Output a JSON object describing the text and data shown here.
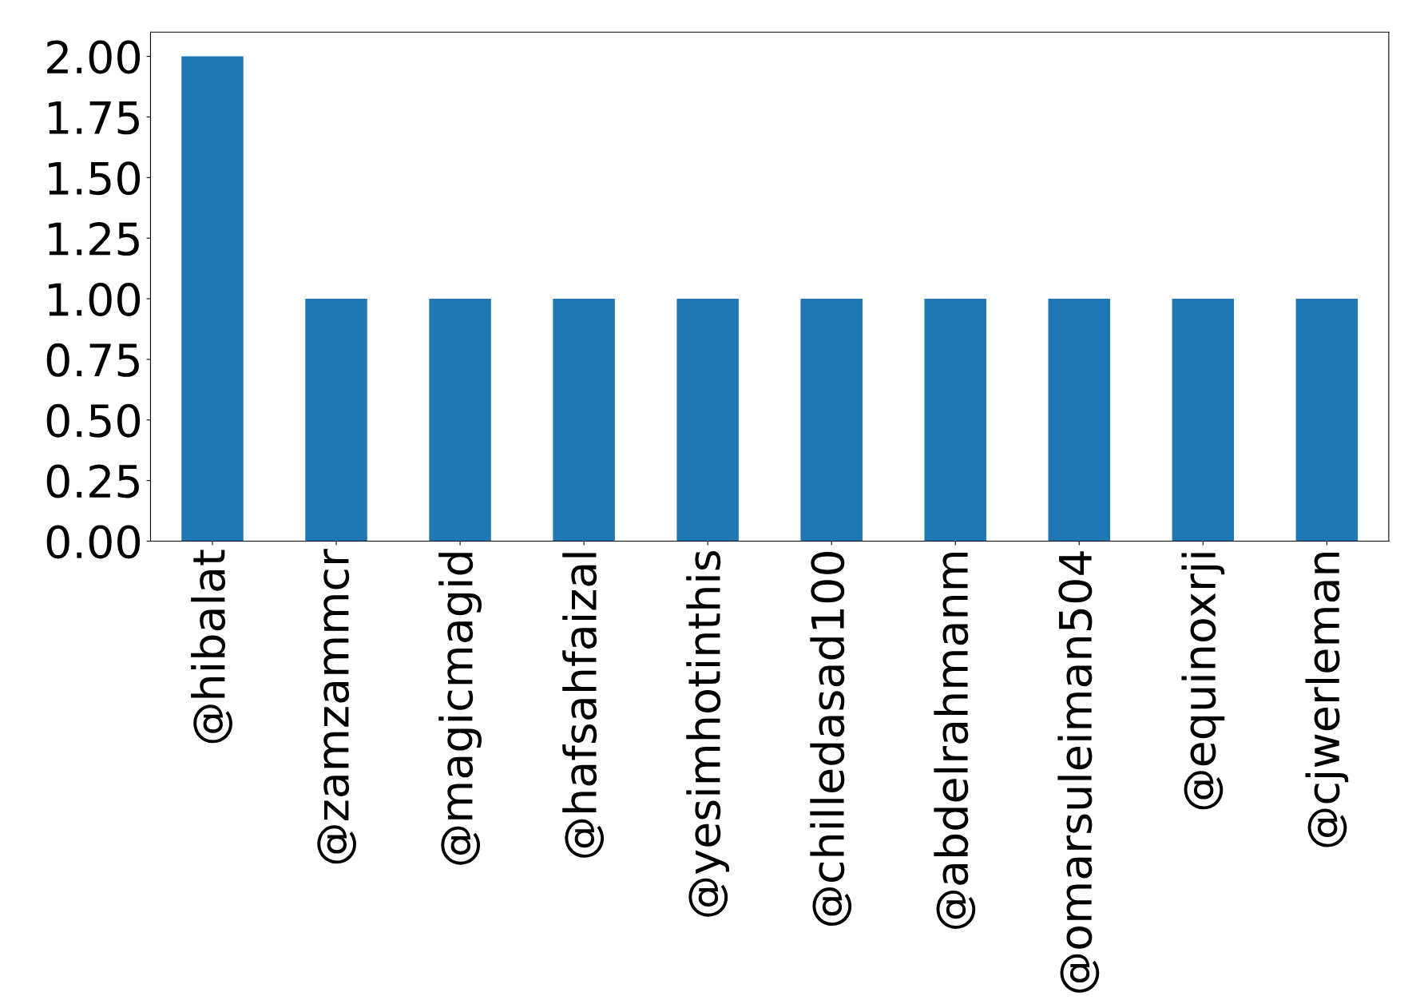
{
  "chart_data": {
    "type": "bar",
    "categories": [
      "@hibalat",
      "@zamzammcr",
      "@magicmagid",
      "@hafsahfaizal",
      "@yesimhotinthis",
      "@chilledasad100",
      "@abdelrahmanm",
      "@omarsuleiman504",
      "@equinoxrji",
      "@cjwerleman"
    ],
    "values": [
      2,
      1,
      1,
      1,
      1,
      1,
      1,
      1,
      1,
      1
    ],
    "color": "#1f77b4",
    "ylim": [
      0,
      2.1
    ],
    "yticks": [
      {
        "value": 0,
        "label": "0.00"
      },
      {
        "value": 0.25,
        "label": "0.25"
      },
      {
        "value": 0.5,
        "label": "0.50"
      },
      {
        "value": 0.75,
        "label": "0.75"
      },
      {
        "value": 1,
        "label": "1.00"
      },
      {
        "value": 1.25,
        "label": "1.25"
      },
      {
        "value": 1.5,
        "label": "1.50"
      },
      {
        "value": 1.75,
        "label": "1.75"
      },
      {
        "value": 2,
        "label": "2.00"
      }
    ],
    "grid": false,
    "legend": false
  }
}
